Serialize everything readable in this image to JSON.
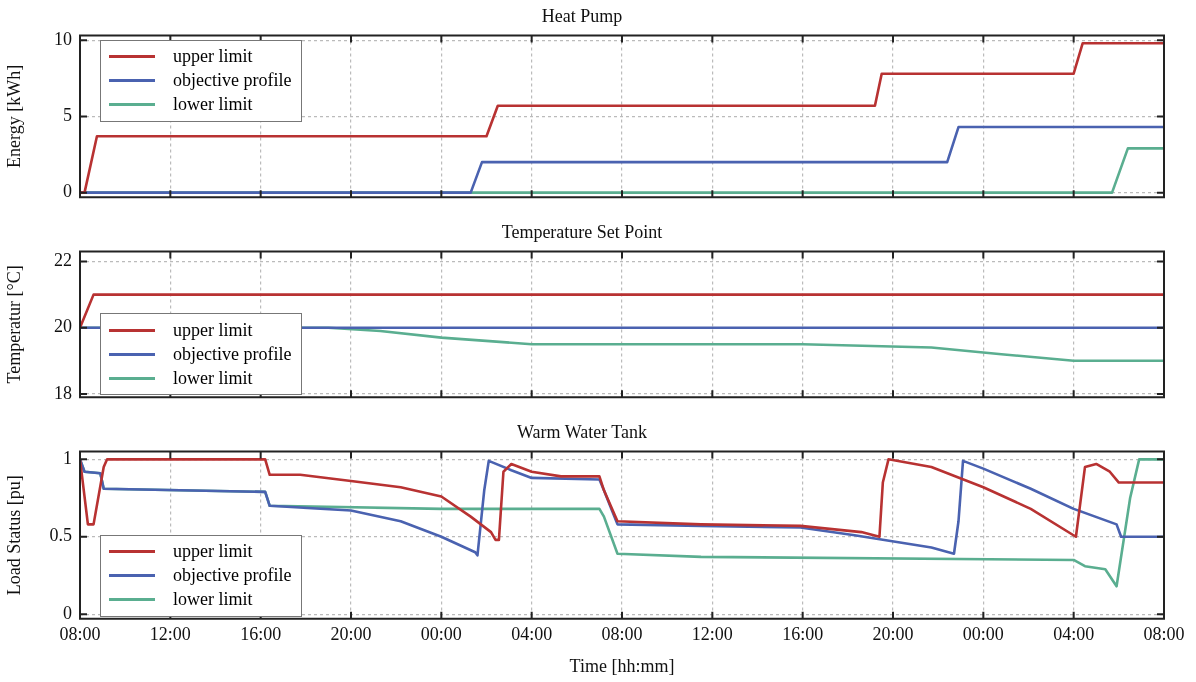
{
  "chart_data": [
    {
      "type": "line",
      "title": "Heat Pump",
      "ylabel": "Energy [kWh]",
      "xlim": [
        "2000-01-01T08:00",
        "2000-01-03T08:00"
      ],
      "xticks": [
        {
          "value": "2000-01-01T08:00",
          "label": null
        },
        {
          "value": "2000-01-01T12:00",
          "label": null
        },
        {
          "value": "2000-01-01T16:00",
          "label": null
        },
        {
          "value": "2000-01-01T20:00",
          "label": null
        },
        {
          "value": "2000-01-02T00:00",
          "label": null
        },
        {
          "value": "2000-01-02T04:00",
          "label": null
        },
        {
          "value": "2000-01-02T08:00",
          "label": null
        },
        {
          "value": "2000-01-02T12:00",
          "label": null
        },
        {
          "value": "2000-01-02T16:00",
          "label": null
        },
        {
          "value": "2000-01-02T20:00",
          "label": null
        },
        {
          "value": "2000-01-03T00:00",
          "label": null
        },
        {
          "value": "2000-01-03T04:00",
          "label": null
        },
        {
          "value": "2000-01-03T08:00",
          "label": null
        }
      ],
      "ylim": [
        -0.3,
        10.3
      ],
      "yticks": [
        0,
        5,
        10
      ],
      "tick_labels": "y",
      "grid": true,
      "legend": "top left",
      "marker": "none",
      "series": [
        {
          "name": "upper limit",
          "color": "#b83232",
          "x": [
            "2000-01-01T08:00",
            "2000-01-01T08:12",
            "2000-01-01T08:45",
            "2000-01-02T02:00",
            "2000-01-02T02:30",
            "2000-01-02T19:12",
            "2000-01-02T19:30",
            "2000-01-03T04:00",
            "2000-01-03T04:24",
            "2000-01-03T08:00"
          ],
          "values": [
            0,
            0,
            3.7,
            3.7,
            5.7,
            5.7,
            7.8,
            7.8,
            9.8,
            9.8
          ]
        },
        {
          "name": "objective profile",
          "color": "#4a62b0",
          "x": [
            "2000-01-01T08:00",
            "2000-01-02T01:18",
            "2000-01-02T01:48",
            "2000-01-02T22:24",
            "2000-01-02T22:54",
            "2000-01-03T08:00"
          ],
          "values": [
            0,
            0,
            2,
            2,
            4.3,
            4.3
          ]
        },
        {
          "name": "lower limit",
          "color": "#5aae90",
          "x": [
            "2000-01-01T08:00",
            "2000-01-03T05:42",
            "2000-01-03T06:24",
            "2000-01-03T08:00"
          ],
          "values": [
            0,
            0,
            2.9,
            2.9
          ]
        }
      ]
    },
    {
      "type": "line",
      "title": "Temperature Set Point",
      "ylabel": "Temperatur [°C]",
      "xlim": [
        "2000-01-01T08:00",
        "2000-01-03T08:00"
      ],
      "xticks": [
        {
          "value": "2000-01-01T08:00",
          "label": null
        },
        {
          "value": "2000-01-01T12:00",
          "label": null
        },
        {
          "value": "2000-01-01T16:00",
          "label": null
        },
        {
          "value": "2000-01-01T20:00",
          "label": null
        },
        {
          "value": "2000-01-02T00:00",
          "label": null
        },
        {
          "value": "2000-01-02T04:00",
          "label": null
        },
        {
          "value": "2000-01-02T08:00",
          "label": null
        },
        {
          "value": "2000-01-02T12:00",
          "label": null
        },
        {
          "value": "2000-01-02T16:00",
          "label": null
        },
        {
          "value": "2000-01-02T20:00",
          "label": null
        },
        {
          "value": "2000-01-03T00:00",
          "label": null
        },
        {
          "value": "2000-01-03T04:00",
          "label": null
        },
        {
          "value": "2000-01-03T08:00",
          "label": null
        }
      ],
      "ylim": [
        17.9,
        22.3
      ],
      "yticks": [
        18,
        20,
        22
      ],
      "tick_labels": "y",
      "grid": true,
      "legend": "bottom left",
      "marker": "none",
      "series": [
        {
          "name": "upper limit",
          "color": "#b83232",
          "x": [
            "2000-01-01T08:00",
            "2000-01-01T08:36",
            "2000-01-03T08:00"
          ],
          "values": [
            20,
            21,
            21
          ]
        },
        {
          "name": "objective profile",
          "color": "#4a62b0",
          "x": [
            "2000-01-01T08:00",
            "2000-01-03T08:00"
          ],
          "values": [
            20,
            20
          ]
        },
        {
          "name": "lower limit",
          "color": "#5aae90",
          "x": [
            "2000-01-01T08:00",
            "2000-01-01T19:00",
            "2000-01-01T21:18",
            "2000-01-02T00:00",
            "2000-01-02T04:00",
            "2000-01-02T16:00",
            "2000-01-02T21:42",
            "2000-01-03T00:48",
            "2000-01-03T04:00",
            "2000-01-03T08:00"
          ],
          "values": [
            20,
            20,
            19.9,
            19.7,
            19.5,
            19.5,
            19.4,
            19.2,
            19,
            19
          ]
        }
      ]
    },
    {
      "type": "line",
      "title": "Warm Water Tank",
      "ylabel": "Load Status [pu]",
      "xlabel": "Time [hh:mm]",
      "xlim": [
        "2000-01-01T08:00",
        "2000-01-03T08:00"
      ],
      "xticks": [
        {
          "value": "2000-01-01T08:00",
          "label": "08:00"
        },
        {
          "value": "2000-01-01T12:00",
          "label": "12:00"
        },
        {
          "value": "2000-01-01T16:00",
          "label": "16:00"
        },
        {
          "value": "2000-01-01T20:00",
          "label": "20:00"
        },
        {
          "value": "2000-01-02T00:00",
          "label": "00:00"
        },
        {
          "value": "2000-01-02T04:00",
          "label": "04:00"
        },
        {
          "value": "2000-01-02T08:00",
          "label": "08:00"
        },
        {
          "value": "2000-01-02T12:00",
          "label": "12:00"
        },
        {
          "value": "2000-01-02T16:00",
          "label": "16:00"
        },
        {
          "value": "2000-01-02T20:00",
          "label": "20:00"
        },
        {
          "value": "2000-01-03T00:00",
          "label": "00:00"
        },
        {
          "value": "2000-01-03T04:00",
          "label": "04:00"
        },
        {
          "value": "2000-01-03T08:00",
          "label": "08:00"
        }
      ],
      "ylim": [
        -0.03,
        1.05
      ],
      "yticks": [
        0,
        0.5,
        1
      ],
      "grid": true,
      "legend": "bottom left",
      "marker": "none",
      "series": [
        {
          "name": "upper limit",
          "color": "#b83232",
          "x": [
            "2000-01-01T08:00",
            "2000-01-01T08:21",
            "2000-01-01T08:36",
            "2000-01-01T09:03",
            "2000-01-01T09:12",
            "2000-01-01T16:12",
            "2000-01-01T16:24",
            "2000-01-01T17:45",
            "2000-01-01T20:00",
            "2000-01-01T22:12",
            "2000-01-02T00:00",
            "2000-01-02T01:18",
            "2000-01-02T02:12",
            "2000-01-02T02:24",
            "2000-01-02T02:33",
            "2000-01-02T02:45",
            "2000-01-02T03:06",
            "2000-01-02T04:00",
            "2000-01-02T05:18",
            "2000-01-02T07:00",
            "2000-01-02T07:12",
            "2000-01-02T07:48",
            "2000-01-02T11:30",
            "2000-01-02T15:54",
            "2000-01-02T18:36",
            "2000-01-02T19:24",
            "2000-01-02T19:33",
            "2000-01-02T19:48",
            "2000-01-02T21:42",
            "2000-01-03T00:00",
            "2000-01-03T02:06",
            "2000-01-03T04:06",
            "2000-01-03T04:30",
            "2000-01-03T05:00",
            "2000-01-03T05:36",
            "2000-01-03T06:00",
            "2000-01-03T08:00"
          ],
          "values": [
            1,
            0.58,
            0.58,
            0.95,
            1,
            1,
            0.9,
            0.9,
            0.86,
            0.82,
            0.76,
            0.63,
            0.53,
            0.48,
            0.48,
            0.92,
            0.97,
            0.92,
            0.89,
            0.89,
            0.8,
            0.6,
            0.58,
            0.57,
            0.53,
            0.5,
            0.85,
            1,
            0.95,
            0.82,
            0.68,
            0.5,
            0.95,
            0.97,
            0.92,
            0.85,
            0.85
          ]
        },
        {
          "name": "objective profile",
          "color": "#4a62b0",
          "x": [
            "2000-01-01T08:00",
            "2000-01-01T08:12",
            "2000-01-01T08:54",
            "2000-01-01T09:03",
            "2000-01-01T16:12",
            "2000-01-01T16:24",
            "2000-01-01T20:00",
            "2000-01-01T22:12",
            "2000-01-02T00:00",
            "2000-01-02T01:30",
            "2000-01-02T01:36",
            "2000-01-02T01:54",
            "2000-01-02T02:06",
            "2000-01-02T03:06",
            "2000-01-02T04:00",
            "2000-01-02T07:00",
            "2000-01-02T07:12",
            "2000-01-02T07:48",
            "2000-01-02T11:30",
            "2000-01-02T15:54",
            "2000-01-02T18:18",
            "2000-01-02T21:42",
            "2000-01-02T22:42",
            "2000-01-02T22:54",
            "2000-01-02T23:06",
            "2000-01-03T00:00",
            "2000-01-03T02:06",
            "2000-01-03T04:00",
            "2000-01-03T05:54",
            "2000-01-03T06:06",
            "2000-01-03T08:00"
          ],
          "values": [
            1,
            0.92,
            0.91,
            0.81,
            0.79,
            0.7,
            0.67,
            0.6,
            0.5,
            0.4,
            0.38,
            0.8,
            0.99,
            0.93,
            0.88,
            0.87,
            0.8,
            0.58,
            0.57,
            0.56,
            0.51,
            0.43,
            0.39,
            0.6,
            0.99,
            0.94,
            0.81,
            0.68,
            0.58,
            0.5,
            0.5
          ]
        },
        {
          "name": "lower limit",
          "color": "#5aae90",
          "x": [
            "2000-01-01T08:00",
            "2000-01-01T08:12",
            "2000-01-01T08:54",
            "2000-01-01T09:03",
            "2000-01-01T16:12",
            "2000-01-01T16:24",
            "2000-01-02T00:00",
            "2000-01-02T07:00",
            "2000-01-02T07:12",
            "2000-01-02T07:48",
            "2000-01-02T11:30",
            "2000-01-03T04:00",
            "2000-01-03T04:30",
            "2000-01-03T05:24",
            "2000-01-03T05:54",
            "2000-01-03T06:30",
            "2000-01-03T06:54",
            "2000-01-03T08:00"
          ],
          "values": [
            1,
            0.92,
            0.91,
            0.81,
            0.79,
            0.7,
            0.68,
            0.68,
            0.63,
            0.39,
            0.37,
            0.35,
            0.31,
            0.29,
            0.18,
            0.75,
            1,
            1
          ]
        }
      ]
    }
  ]
}
